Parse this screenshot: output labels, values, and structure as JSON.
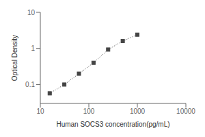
{
  "chart_data": {
    "type": "line",
    "x_label": "Human SOCS3 concentration(pg/mL)",
    "y_label": "Optical Density",
    "x": [
      15.625,
      31.25,
      62.5,
      125,
      250,
      500,
      1000
    ],
    "values": [
      0.057,
      0.1,
      0.2,
      0.4,
      0.93,
      1.6,
      2.4
    ],
    "xlim": [
      10,
      10000
    ],
    "ylim": [
      0.03,
      10
    ],
    "xticks": [
      10,
      100,
      1000,
      10000
    ],
    "yticks": [
      0.1,
      1,
      10
    ],
    "log": true,
    "grid": false,
    "color": "#444444",
    "marker": "square",
    "line_style": "dotted"
  }
}
